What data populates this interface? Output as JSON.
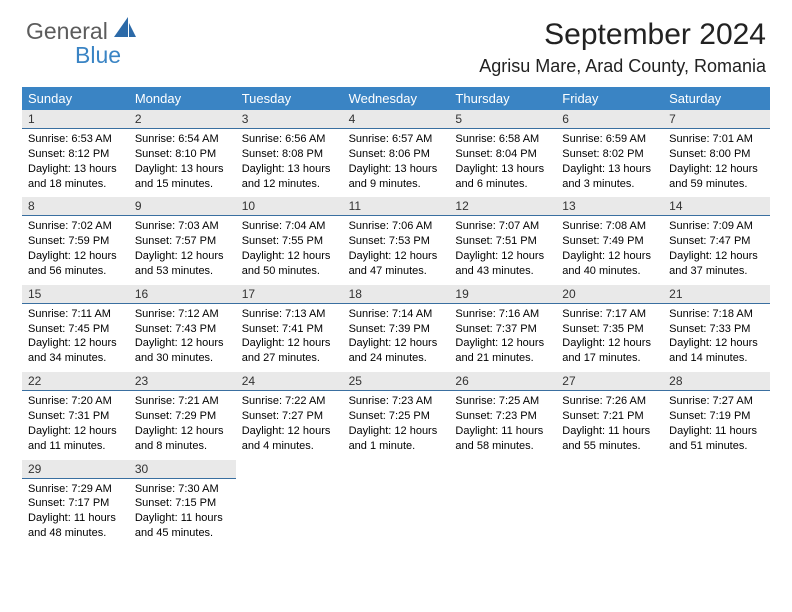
{
  "logo": {
    "text_general": "General",
    "text_blue": "Blue",
    "icon_color": "#2c6aa8"
  },
  "title": "September 2024",
  "location": "Agrisu Mare, Arad County, Romania",
  "colors": {
    "header_bar": "#3a84c4",
    "daynum_bg": "#e9e9e9",
    "daynum_rule": "#3a6fa0"
  },
  "weekdays": [
    "Sunday",
    "Monday",
    "Tuesday",
    "Wednesday",
    "Thursday",
    "Friday",
    "Saturday"
  ],
  "weeks": [
    [
      {
        "n": "1",
        "sr": "6:53 AM",
        "ss": "8:12 PM",
        "dl": "13 hours and 18 minutes."
      },
      {
        "n": "2",
        "sr": "6:54 AM",
        "ss": "8:10 PM",
        "dl": "13 hours and 15 minutes."
      },
      {
        "n": "3",
        "sr": "6:56 AM",
        "ss": "8:08 PM",
        "dl": "13 hours and 12 minutes."
      },
      {
        "n": "4",
        "sr": "6:57 AM",
        "ss": "8:06 PM",
        "dl": "13 hours and 9 minutes."
      },
      {
        "n": "5",
        "sr": "6:58 AM",
        "ss": "8:04 PM",
        "dl": "13 hours and 6 minutes."
      },
      {
        "n": "6",
        "sr": "6:59 AM",
        "ss": "8:02 PM",
        "dl": "13 hours and 3 minutes."
      },
      {
        "n": "7",
        "sr": "7:01 AM",
        "ss": "8:00 PM",
        "dl": "12 hours and 59 minutes."
      }
    ],
    [
      {
        "n": "8",
        "sr": "7:02 AM",
        "ss": "7:59 PM",
        "dl": "12 hours and 56 minutes."
      },
      {
        "n": "9",
        "sr": "7:03 AM",
        "ss": "7:57 PM",
        "dl": "12 hours and 53 minutes."
      },
      {
        "n": "10",
        "sr": "7:04 AM",
        "ss": "7:55 PM",
        "dl": "12 hours and 50 minutes."
      },
      {
        "n": "11",
        "sr": "7:06 AM",
        "ss": "7:53 PM",
        "dl": "12 hours and 47 minutes."
      },
      {
        "n": "12",
        "sr": "7:07 AM",
        "ss": "7:51 PM",
        "dl": "12 hours and 43 minutes."
      },
      {
        "n": "13",
        "sr": "7:08 AM",
        "ss": "7:49 PM",
        "dl": "12 hours and 40 minutes."
      },
      {
        "n": "14",
        "sr": "7:09 AM",
        "ss": "7:47 PM",
        "dl": "12 hours and 37 minutes."
      }
    ],
    [
      {
        "n": "15",
        "sr": "7:11 AM",
        "ss": "7:45 PM",
        "dl": "12 hours and 34 minutes."
      },
      {
        "n": "16",
        "sr": "7:12 AM",
        "ss": "7:43 PM",
        "dl": "12 hours and 30 minutes."
      },
      {
        "n": "17",
        "sr": "7:13 AM",
        "ss": "7:41 PM",
        "dl": "12 hours and 27 minutes."
      },
      {
        "n": "18",
        "sr": "7:14 AM",
        "ss": "7:39 PM",
        "dl": "12 hours and 24 minutes."
      },
      {
        "n": "19",
        "sr": "7:16 AM",
        "ss": "7:37 PM",
        "dl": "12 hours and 21 minutes."
      },
      {
        "n": "20",
        "sr": "7:17 AM",
        "ss": "7:35 PM",
        "dl": "12 hours and 17 minutes."
      },
      {
        "n": "21",
        "sr": "7:18 AM",
        "ss": "7:33 PM",
        "dl": "12 hours and 14 minutes."
      }
    ],
    [
      {
        "n": "22",
        "sr": "7:20 AM",
        "ss": "7:31 PM",
        "dl": "12 hours and 11 minutes."
      },
      {
        "n": "23",
        "sr": "7:21 AM",
        "ss": "7:29 PM",
        "dl": "12 hours and 8 minutes."
      },
      {
        "n": "24",
        "sr": "7:22 AM",
        "ss": "7:27 PM",
        "dl": "12 hours and 4 minutes."
      },
      {
        "n": "25",
        "sr": "7:23 AM",
        "ss": "7:25 PM",
        "dl": "12 hours and 1 minute."
      },
      {
        "n": "26",
        "sr": "7:25 AM",
        "ss": "7:23 PM",
        "dl": "11 hours and 58 minutes."
      },
      {
        "n": "27",
        "sr": "7:26 AM",
        "ss": "7:21 PM",
        "dl": "11 hours and 55 minutes."
      },
      {
        "n": "28",
        "sr": "7:27 AM",
        "ss": "7:19 PM",
        "dl": "11 hours and 51 minutes."
      }
    ],
    [
      {
        "n": "29",
        "sr": "7:29 AM",
        "ss": "7:17 PM",
        "dl": "11 hours and 48 minutes."
      },
      {
        "n": "30",
        "sr": "7:30 AM",
        "ss": "7:15 PM",
        "dl": "11 hours and 45 minutes."
      },
      null,
      null,
      null,
      null,
      null
    ]
  ],
  "labels": {
    "sunrise": "Sunrise: ",
    "sunset": "Sunset: ",
    "daylight": "Daylight: "
  }
}
